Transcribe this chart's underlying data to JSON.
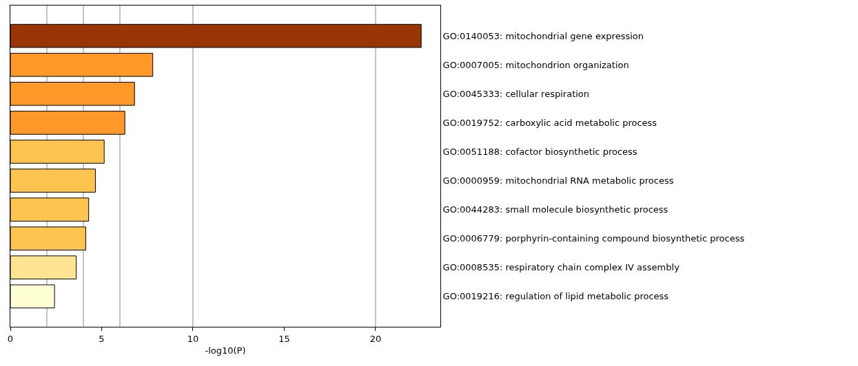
{
  "chart_data": {
    "type": "bar",
    "orientation": "horizontal",
    "xlabel": "-log10(P)",
    "categories": [
      "GO:0140053: mitochondrial gene expression",
      "GO:0007005: mitochondrion organization",
      "GO:0045333: cellular respiration",
      "GO:0019752: carboxylic acid metabolic process",
      "GO:0051188: cofactor biosynthetic process",
      "GO:0000959: mitochondrial RNA metabolic process",
      "GO:0044283: small molecule biosynthetic process",
      "GO:0006779: porphyrin-containing compound biosynthetic process",
      "GO:0008535: respiratory chain complex IV assembly",
      "GO:0019216: regulation of lipid metabolic process"
    ],
    "values": [
      22.5,
      7.8,
      6.8,
      6.27,
      5.14,
      4.66,
      4.29,
      4.13,
      3.61,
      2.42
    ],
    "colors": [
      "#993404",
      "#fe9929",
      "#fe9929",
      "#fe9929",
      "#fec44f",
      "#fec44f",
      "#fec44f",
      "#fec44f",
      "#fee391",
      "#ffffd4"
    ],
    "xlim": [
      0,
      23.55
    ],
    "xticks": [
      0,
      5,
      10,
      15,
      20
    ],
    "ref_lines": [
      {
        "axis": "x",
        "value": 2,
        "color": "#b0b0b0"
      },
      {
        "axis": "x",
        "value": 4,
        "color": "#b0b0b0"
      },
      {
        "axis": "x",
        "value": 6,
        "color": "#b0b0b0"
      },
      {
        "axis": "x",
        "value": 10,
        "color": "#b0b0b0"
      },
      {
        "axis": "x",
        "value": 20,
        "color": "#b0b0b0"
      }
    ]
  }
}
